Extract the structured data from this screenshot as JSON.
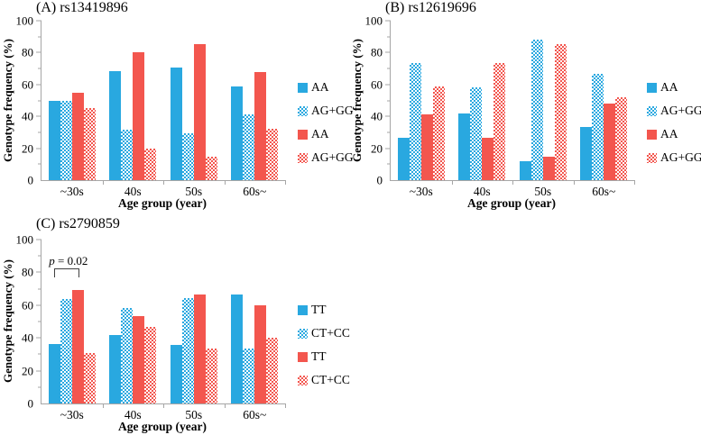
{
  "figure": {
    "background": "#ffffff",
    "axis_color": "#a6a6a6",
    "text_color": "#000000"
  },
  "palette": {
    "blue": "#29a8e0",
    "red": "#f3564e"
  },
  "chart_data": [
    {
      "id": "A",
      "type": "bar",
      "title": "(A) rs13419896",
      "xlabel": "Age group (year)",
      "ylabel": "Genotype frequency (%)",
      "ylim": [
        0,
        100
      ],
      "yticks": [
        0,
        20,
        40,
        60,
        80,
        100
      ],
      "minor_tick_step": 10,
      "grid": false,
      "legend_position": "right",
      "categories": [
        "~30s",
        "40s",
        "50s",
        "60s~"
      ],
      "series": [
        {
          "name": "AA",
          "style": "solid",
          "color": "#29a8e0",
          "color_name": "blue",
          "values": [
            50,
            68.5,
            70.5,
            58.5
          ]
        },
        {
          "name": "AG+GG",
          "style": "hatched",
          "color": "#29a8e0",
          "color_name": "blue",
          "values": [
            50,
            31.5,
            29.5,
            41.5
          ]
        },
        {
          "name": "AA",
          "style": "solid",
          "color": "#f3564e",
          "color_name": "red",
          "values": [
            55,
            80,
            85.5,
            68
          ]
        },
        {
          "name": "AG+GG",
          "style": "hatched",
          "color": "#f3564e",
          "color_name": "red",
          "values": [
            45,
            20,
            14.5,
            32
          ]
        }
      ]
    },
    {
      "id": "B",
      "type": "bar",
      "title": "(B) rs12619696",
      "xlabel": "Age group (year)",
      "ylabel": "Genotype frequency (%)",
      "ylim": [
        0,
        100
      ],
      "yticks": [
        0,
        20,
        40,
        60,
        80,
        100
      ],
      "minor_tick_step": 10,
      "grid": false,
      "legend_position": "right",
      "categories": [
        "~30s",
        "40s",
        "50s",
        "60s~"
      ],
      "series": [
        {
          "name": "AA",
          "style": "solid",
          "color": "#29a8e0",
          "color_name": "blue",
          "values": [
            26.5,
            42,
            12,
            33.5
          ]
        },
        {
          "name": "AG+GG",
          "style": "hatched",
          "color": "#29a8e0",
          "color_name": "blue",
          "values": [
            73.5,
            58,
            88,
            66.5
          ]
        },
        {
          "name": "AA",
          "style": "solid",
          "color": "#f3564e",
          "color_name": "red",
          "values": [
            41.5,
            26.5,
            14.5,
            48
          ]
        },
        {
          "name": "AG+GG",
          "style": "hatched",
          "color": "#f3564e",
          "color_name": "red",
          "values": [
            58.5,
            73.5,
            85.5,
            52
          ]
        }
      ]
    },
    {
      "id": "C",
      "type": "bar",
      "title": "(C) rs2790859",
      "xlabel": "Age group (year)",
      "ylabel": "Genotype frequency (%)",
      "ylim": [
        0,
        100
      ],
      "yticks": [
        0,
        20,
        40,
        60,
        80,
        100
      ],
      "minor_tick_step": 10,
      "grid": false,
      "legend_position": "right",
      "categories": [
        "~30s",
        "40s",
        "50s",
        "60s~"
      ],
      "series": [
        {
          "name": "TT",
          "style": "solid",
          "color": "#29a8e0",
          "color_name": "blue",
          "values": [
            36.5,
            42,
            35.5,
            66.5
          ]
        },
        {
          "name": "CT+CC",
          "style": "hatched",
          "color": "#29a8e0",
          "color_name": "blue",
          "values": [
            63.5,
            58,
            64.5,
            33.5
          ]
        },
        {
          "name": "TT",
          "style": "solid",
          "color": "#f3564e",
          "color_name": "red",
          "values": [
            69,
            53.5,
            66.5,
            60
          ]
        },
        {
          "name": "CT+CC",
          "style": "hatched",
          "color": "#f3564e",
          "color_name": "red",
          "values": [
            31,
            46.5,
            33.5,
            40
          ]
        }
      ],
      "annotation": {
        "text": "p = 0.02",
        "italic_part": "p",
        "rest_part": " = 0.02",
        "group": 0,
        "from_bar": 0,
        "to_bar": 2,
        "y_percent": 77
      }
    }
  ]
}
